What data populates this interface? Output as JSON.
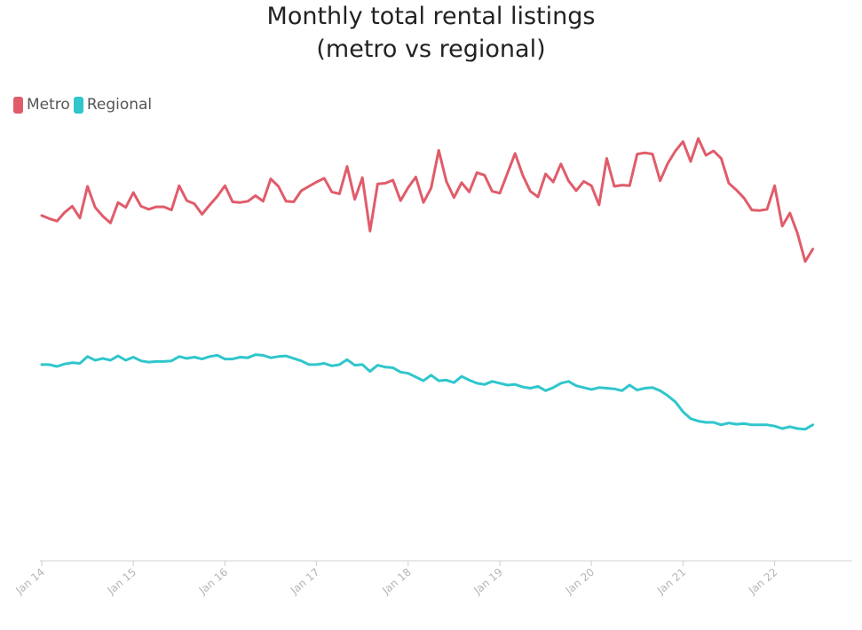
{
  "chart_data": {
    "type": "line",
    "title_line1": "Monthly total rental listings",
    "title_line2": "(metro vs regional)",
    "xlabel": "",
    "ylabel": "",
    "legend_position": "top-left",
    "grid": false,
    "x_tick_labels": [
      "Jan 14",
      "Jan 15",
      "Jan 16",
      "Jan 17",
      "Jan 18",
      "Jan 19",
      "Jan 20",
      "Jan 21",
      "Jan 22"
    ],
    "x_start_month_index": 0,
    "ylim": [
      0,
      1000
    ],
    "series": [
      {
        "name": "Metro",
        "color": "#e05c6a",
        "values": [
          653,
          648,
          644,
          658,
          668,
          649,
          700,
          666,
          652,
          641,
          674,
          666,
          690,
          668,
          663,
          667,
          667,
          662,
          701,
          677,
          672,
          655,
          670,
          684,
          701,
          675,
          674,
          676,
          685,
          676,
          712,
          700,
          676,
          675,
          693,
          700,
          707,
          713,
          691,
          688,
          732,
          679,
          714,
          628,
          704,
          705,
          710,
          677,
          698,
          715,
          674,
          697,
          758,
          708,
          682,
          706,
          691,
          722,
          718,
          692,
          689,
          721,
          753,
          718,
          692,
          683,
          720,
          707,
          736,
          709,
          693,
          708,
          701,
          670,
          745,
          700,
          702,
          701,
          752,
          754,
          752,
          709,
          737,
          757,
          772,
          740,
          777,
          750,
          757,
          745,
          705,
          694,
          681,
          662,
          661,
          663,
          701,
          636,
          657,
          624,
          579,
          599
        ]
      },
      {
        "name": "Regional",
        "color": "#2fc6cc",
        "values": [
          413,
          413,
          410,
          414,
          416,
          415,
          426,
          420,
          423,
          420,
          427,
          420,
          425,
          419,
          417,
          418,
          418,
          419,
          426,
          423,
          425,
          422,
          426,
          428,
          422,
          422,
          425,
          424,
          429,
          428,
          424,
          426,
          427,
          423,
          419,
          413,
          413,
          415,
          411,
          413,
          421,
          412,
          413,
          402,
          412,
          409,
          408,
          401,
          399,
          393,
          387,
          396,
          387,
          388,
          384,
          394,
          388,
          383,
          381,
          386,
          383,
          380,
          381,
          377,
          375,
          378,
          371,
          376,
          383,
          386,
          379,
          376,
          373,
          376,
          375,
          374,
          371,
          380,
          372,
          375,
          376,
          371,
          363,
          353,
          337,
          326,
          322,
          320,
          320,
          316,
          319,
          317,
          318,
          316,
          316,
          316,
          314,
          310,
          313,
          310,
          309,
          316
        ]
      }
    ]
  }
}
